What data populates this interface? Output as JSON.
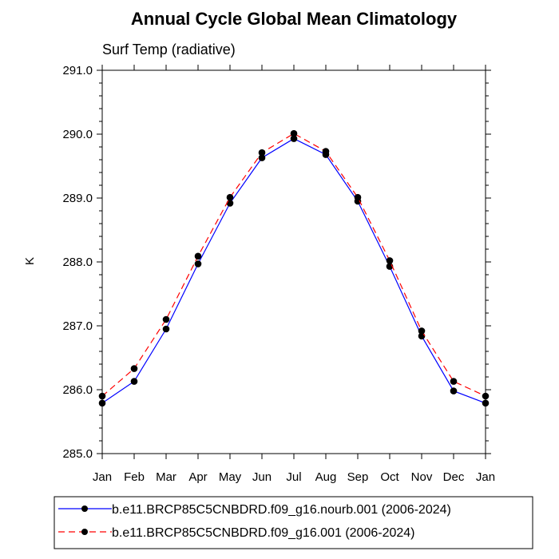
{
  "chart_data": {
    "type": "line",
    "title": "Annual Cycle Global Mean Climatology",
    "subtitle": "Surf Temp (radiative)",
    "xlabel": "",
    "ylabel": "K",
    "categories": [
      "Jan",
      "Feb",
      "Mar",
      "Apr",
      "May",
      "Jun",
      "Jul",
      "Aug",
      "Sep",
      "Oct",
      "Nov",
      "Dec",
      "Jan"
    ],
    "ylim": [
      285.0,
      291.0
    ],
    "yticks": [
      "285.0",
      "286.0",
      "287.0",
      "288.0",
      "289.0",
      "290.0",
      "291.0"
    ],
    "grid": false,
    "legend_position": "bottom",
    "series": [
      {
        "name": "b.e11.BRCP85C5CNBDRD.f09_g16.nourb.001 (2006-2024)",
        "color": "#0000ff",
        "dash": "solid",
        "values": [
          285.79,
          286.13,
          286.95,
          287.97,
          288.92,
          289.63,
          289.93,
          289.68,
          288.95,
          287.93,
          286.84,
          285.98,
          285.79
        ]
      },
      {
        "name": "b.e11.BRCP85C5CNBDRD.f09_g16.001 (2006-2024)",
        "color": "#ff0000",
        "dash": "dashed",
        "values": [
          285.9,
          286.33,
          287.1,
          288.09,
          289.01,
          289.71,
          290.01,
          289.73,
          289.01,
          288.02,
          286.92,
          286.13,
          285.9
        ]
      }
    ]
  }
}
